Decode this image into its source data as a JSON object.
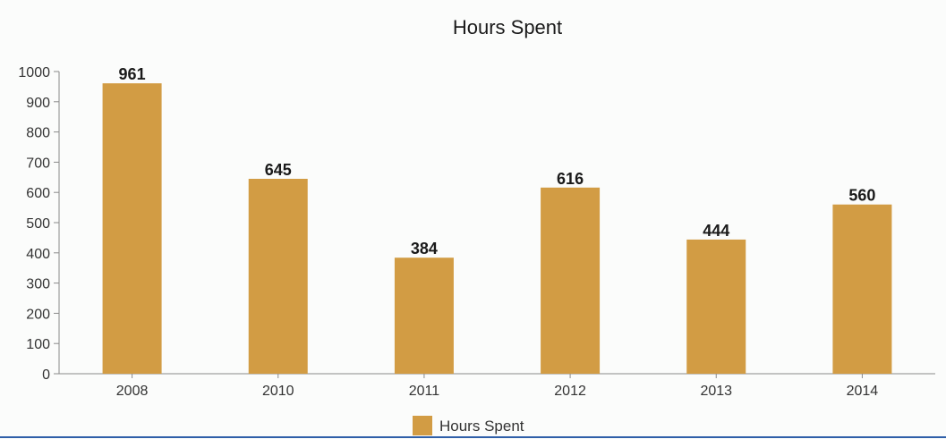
{
  "chart_data": {
    "type": "bar",
    "title": "Hours Spent",
    "xlabel": "",
    "ylabel": "",
    "categories": [
      "2008",
      "2010",
      "2011",
      "2012",
      "2013",
      "2014"
    ],
    "series": [
      {
        "name": "Hours Spent",
        "values": [
          961,
          645,
          384,
          616,
          444,
          560
        ],
        "color": "#d29c44"
      }
    ],
    "ylim": [
      0,
      1000
    ],
    "yticks": [
      0,
      100,
      200,
      300,
      400,
      500,
      600,
      700,
      800,
      900,
      1000
    ],
    "grid": false,
    "data_labels": true,
    "legend_position": "bottom"
  }
}
